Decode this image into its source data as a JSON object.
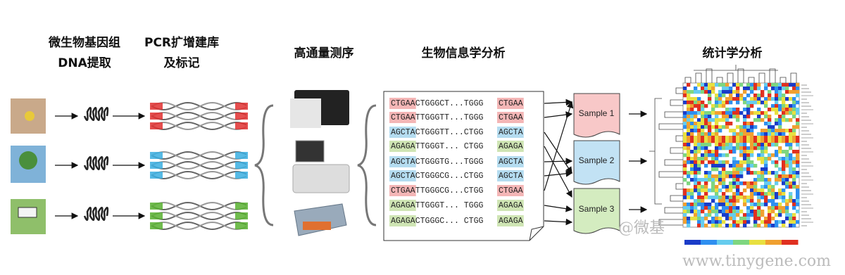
{
  "headers": [
    {
      "lines": [
        "微生物基因组",
        "DNA提取"
      ]
    },
    {
      "lines": [
        "PCR扩增建库",
        "及标记"
      ]
    },
    {
      "lines": [
        "高通量测序"
      ]
    },
    {
      "lines": [
        "生物信息学分析"
      ]
    },
    {
      "lines": [
        "统计学分析"
      ]
    }
  ],
  "sequences": [
    {
      "prefix": "CTGAA",
      "middle": "CTGGGCT...TGGG",
      "suffix": "CTGAA"
    },
    {
      "prefix": "CTGAA",
      "middle": "TTGGGTT...TGGG",
      "suffix": "CTGAA"
    },
    {
      "prefix": "AGCTA",
      "middle": "CTGGGTT...CTGG",
      "suffix": "AGCTA"
    },
    {
      "prefix": "AGAGA",
      "middle": "TTGGGT... CTGG",
      "suffix": "AGAGA"
    },
    {
      "prefix": "AGCTA",
      "middle": "CTGGGTG...TGGG",
      "suffix": "AGCTA"
    },
    {
      "prefix": "AGCTA",
      "middle": "CTGGGCG...CTGG",
      "suffix": "AGCTA"
    },
    {
      "prefix": "CTGAA",
      "middle": "TTGGGCG...CTGG",
      "suffix": "CTGAA"
    },
    {
      "prefix": "AGAGA",
      "middle": "TTGGGT... TGGG",
      "suffix": "AGAGA"
    },
    {
      "prefix": "AGAGA",
      "middle": "CTGGGC... CTGG",
      "suffix": "AGAGA"
    }
  ],
  "samples": [
    "Sample 1",
    "Sample 2",
    "Sample 3"
  ],
  "watermark": {
    "handle": "@微基",
    "site": "www.tinygene.com"
  }
}
